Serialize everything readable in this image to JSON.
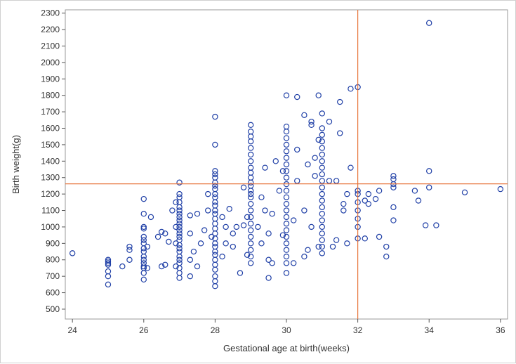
{
  "chart_data": {
    "type": "scatter",
    "title": "",
    "xlabel": "Gestational age at birth(weeks)",
    "ylabel": "Birth weight(g)",
    "xlim": [
      23.8,
      36.2
    ],
    "ylim": [
      440,
      2320
    ],
    "xticks": [
      24,
      26,
      28,
      30,
      32,
      34,
      36
    ],
    "yticks": [
      500,
      600,
      700,
      800,
      900,
      1000,
      1100,
      1200,
      1300,
      1400,
      1500,
      1600,
      1700,
      1800,
      1900,
      2000,
      2100,
      2200,
      2300
    ],
    "reference_lines": {
      "x": 32,
      "y": 1262
    },
    "colors": {
      "marker": "#1f3fa6",
      "reference": "#e8743b",
      "axis": "#555555"
    },
    "series": [
      {
        "name": "Birth weight",
        "points": [
          [
            24,
            840
          ],
          [
            25,
            650
          ],
          [
            25,
            700
          ],
          [
            25,
            730
          ],
          [
            25,
            770
          ],
          [
            25,
            780
          ],
          [
            25,
            790
          ],
          [
            25,
            800
          ],
          [
            25.4,
            760
          ],
          [
            25.6,
            800
          ],
          [
            25.6,
            860
          ],
          [
            25.6,
            880
          ],
          [
            26,
            680
          ],
          [
            26,
            720
          ],
          [
            26,
            750
          ],
          [
            26,
            760
          ],
          [
            26,
            780
          ],
          [
            26,
            800
          ],
          [
            26,
            820
          ],
          [
            26,
            850
          ],
          [
            26,
            870
          ],
          [
            26,
            900
          ],
          [
            26,
            920
          ],
          [
            26,
            940
          ],
          [
            26,
            990
          ],
          [
            26,
            1000
          ],
          [
            26,
            1080
          ],
          [
            26,
            1170
          ],
          [
            26.1,
            750
          ],
          [
            26.1,
            880
          ],
          [
            26.2,
            1060
          ],
          [
            26.4,
            940
          ],
          [
            26.5,
            760
          ],
          [
            26.5,
            970
          ],
          [
            26.6,
            770
          ],
          [
            26.6,
            960
          ],
          [
            26.7,
            910
          ],
          [
            26.8,
            1100
          ],
          [
            27,
            690
          ],
          [
            27,
            720
          ],
          [
            27,
            750
          ],
          [
            27,
            780
          ],
          [
            27,
            800
          ],
          [
            27,
            820
          ],
          [
            27,
            850
          ],
          [
            27,
            870
          ],
          [
            27,
            890
          ],
          [
            27,
            920
          ],
          [
            27,
            940
          ],
          [
            27,
            960
          ],
          [
            27,
            980
          ],
          [
            27,
            1000
          ],
          [
            27,
            1020
          ],
          [
            27,
            1040
          ],
          [
            27,
            1060
          ],
          [
            27,
            1080
          ],
          [
            27,
            1100
          ],
          [
            27,
            1120
          ],
          [
            27,
            1150
          ],
          [
            27,
            1180
          ],
          [
            27,
            1200
          ],
          [
            27,
            1270
          ],
          [
            26.9,
            760
          ],
          [
            26.9,
            900
          ],
          [
            26.9,
            1000
          ],
          [
            26.9,
            1150
          ],
          [
            27.3,
            700
          ],
          [
            27.3,
            800
          ],
          [
            27.3,
            960
          ],
          [
            27.3,
            1070
          ],
          [
            27.4,
            850
          ],
          [
            27.5,
            760
          ],
          [
            27.5,
            1080
          ],
          [
            27.6,
            900
          ],
          [
            27.7,
            980
          ],
          [
            27.8,
            1200
          ],
          [
            27.8,
            1100
          ],
          [
            27.9,
            940
          ],
          [
            28,
            640
          ],
          [
            28,
            670
          ],
          [
            28,
            700
          ],
          [
            28,
            740
          ],
          [
            28,
            770
          ],
          [
            28,
            800
          ],
          [
            28,
            830
          ],
          [
            28,
            850
          ],
          [
            28,
            880
          ],
          [
            28,
            900
          ],
          [
            28,
            930
          ],
          [
            28,
            960
          ],
          [
            28,
            990
          ],
          [
            28,
            1020
          ],
          [
            28,
            1050
          ],
          [
            28,
            1080
          ],
          [
            28,
            1100
          ],
          [
            28,
            1130
          ],
          [
            28,
            1150
          ],
          [
            28,
            1180
          ],
          [
            28,
            1200
          ],
          [
            28,
            1230
          ],
          [
            28,
            1250
          ],
          [
            28,
            1270
          ],
          [
            28,
            1300
          ],
          [
            28,
            1320
          ],
          [
            28,
            1340
          ],
          [
            28,
            1500
          ],
          [
            28,
            1670
          ],
          [
            28.2,
            820
          ],
          [
            28.2,
            1060
          ],
          [
            28.3,
            900
          ],
          [
            28.3,
            1000
          ],
          [
            28.4,
            1110
          ],
          [
            28.5,
            880
          ],
          [
            28.5,
            960
          ],
          [
            28.6,
            1000
          ],
          [
            28.7,
            720
          ],
          [
            28.8,
            1010
          ],
          [
            28.8,
            1240
          ],
          [
            28.9,
            830
          ],
          [
            28.9,
            1060
          ],
          [
            29,
            780
          ],
          [
            29,
            820
          ],
          [
            29,
            860
          ],
          [
            29,
            900
          ],
          [
            29,
            940
          ],
          [
            29,
            980
          ],
          [
            29,
            1020
          ],
          [
            29,
            1060
          ],
          [
            29,
            1100
          ],
          [
            29,
            1140
          ],
          [
            29,
            1180
          ],
          [
            29,
            1200
          ],
          [
            29,
            1220
          ],
          [
            29,
            1250
          ],
          [
            29,
            1270
          ],
          [
            29,
            1300
          ],
          [
            29,
            1330
          ],
          [
            29,
            1360
          ],
          [
            29,
            1400
          ],
          [
            29,
            1440
          ],
          [
            29,
            1480
          ],
          [
            29,
            1520
          ],
          [
            29,
            1550
          ],
          [
            29,
            1580
          ],
          [
            29,
            1620
          ],
          [
            29.2,
            1000
          ],
          [
            29.3,
            900
          ],
          [
            29.3,
            1180
          ],
          [
            29.4,
            1100
          ],
          [
            29.4,
            1360
          ],
          [
            29.5,
            690
          ],
          [
            29.5,
            800
          ],
          [
            29.5,
            960
          ],
          [
            29.6,
            780
          ],
          [
            29.6,
            1080
          ],
          [
            29.7,
            1400
          ],
          [
            29.8,
            1220
          ],
          [
            29.9,
            950
          ],
          [
            29.9,
            1340
          ],
          [
            30,
            720
          ],
          [
            30,
            780
          ],
          [
            30,
            820
          ],
          [
            30,
            860
          ],
          [
            30,
            900
          ],
          [
            30,
            940
          ],
          [
            30,
            980
          ],
          [
            30,
            1020
          ],
          [
            30,
            1060
          ],
          [
            30,
            1100
          ],
          [
            30,
            1140
          ],
          [
            30,
            1180
          ],
          [
            30,
            1220
          ],
          [
            30,
            1260
          ],
          [
            30,
            1300
          ],
          [
            30,
            1340
          ],
          [
            30,
            1380
          ],
          [
            30,
            1420
          ],
          [
            30,
            1460
          ],
          [
            30,
            1500
          ],
          [
            30,
            1540
          ],
          [
            30,
            1580
          ],
          [
            30,
            1610
          ],
          [
            30,
            1800
          ],
          [
            30.2,
            780
          ],
          [
            30.2,
            1040
          ],
          [
            30.3,
            1280
          ],
          [
            30.3,
            1470
          ],
          [
            30.3,
            1790
          ],
          [
            30.5,
            820
          ],
          [
            30.5,
            1100
          ],
          [
            30.5,
            1680
          ],
          [
            30.6,
            860
          ],
          [
            30.6,
            1380
          ],
          [
            30.7,
            1000
          ],
          [
            30.7,
            1620
          ],
          [
            30.7,
            1640
          ],
          [
            30.8,
            1420
          ],
          [
            30.8,
            1310
          ],
          [
            30.9,
            1530
          ],
          [
            30.9,
            1800
          ],
          [
            30.9,
            880
          ],
          [
            31,
            840
          ],
          [
            31,
            880
          ],
          [
            31,
            920
          ],
          [
            31,
            960
          ],
          [
            31,
            1000
          ],
          [
            31,
            1040
          ],
          [
            31,
            1080
          ],
          [
            31,
            1120
          ],
          [
            31,
            1160
          ],
          [
            31,
            1200
          ],
          [
            31,
            1240
          ],
          [
            31,
            1280
          ],
          [
            31,
            1320
          ],
          [
            31,
            1360
          ],
          [
            31,
            1400
          ],
          [
            31,
            1440
          ],
          [
            31,
            1480
          ],
          [
            31,
            1520
          ],
          [
            31,
            1560
          ],
          [
            31,
            1600
          ],
          [
            31,
            1690
          ],
          [
            31.2,
            1280
          ],
          [
            31.2,
            1640
          ],
          [
            31.3,
            880
          ],
          [
            31.4,
            920
          ],
          [
            31.4,
            1280
          ],
          [
            31.5,
            1570
          ],
          [
            31.5,
            1760
          ],
          [
            31.6,
            1100
          ],
          [
            31.6,
            1140
          ],
          [
            31.7,
            1200
          ],
          [
            31.7,
            900
          ],
          [
            31.8,
            1360
          ],
          [
            31.8,
            1840
          ],
          [
            32,
            930
          ],
          [
            32,
            1000
          ],
          [
            32,
            1050
          ],
          [
            32,
            1100
          ],
          [
            32,
            1150
          ],
          [
            32,
            1200
          ],
          [
            32,
            1220
          ],
          [
            32,
            1850
          ],
          [
            32.2,
            1160
          ],
          [
            32.2,
            930
          ],
          [
            32.3,
            1140
          ],
          [
            32.3,
            1200
          ],
          [
            32.5,
            1170
          ],
          [
            32.6,
            940
          ],
          [
            32.6,
            1220
          ],
          [
            32.8,
            880
          ],
          [
            32.8,
            820
          ],
          [
            33,
            1040
          ],
          [
            33,
            1120
          ],
          [
            33,
            1240
          ],
          [
            33,
            1260
          ],
          [
            33,
            1290
          ],
          [
            33,
            1310
          ],
          [
            33.6,
            1220
          ],
          [
            33.7,
            1160
          ],
          [
            33.9,
            1010
          ],
          [
            34,
            1240
          ],
          [
            34,
            1340
          ],
          [
            34,
            2240
          ],
          [
            34.2,
            1010
          ],
          [
            35,
            1210
          ],
          [
            36,
            1230
          ]
        ]
      }
    ]
  }
}
